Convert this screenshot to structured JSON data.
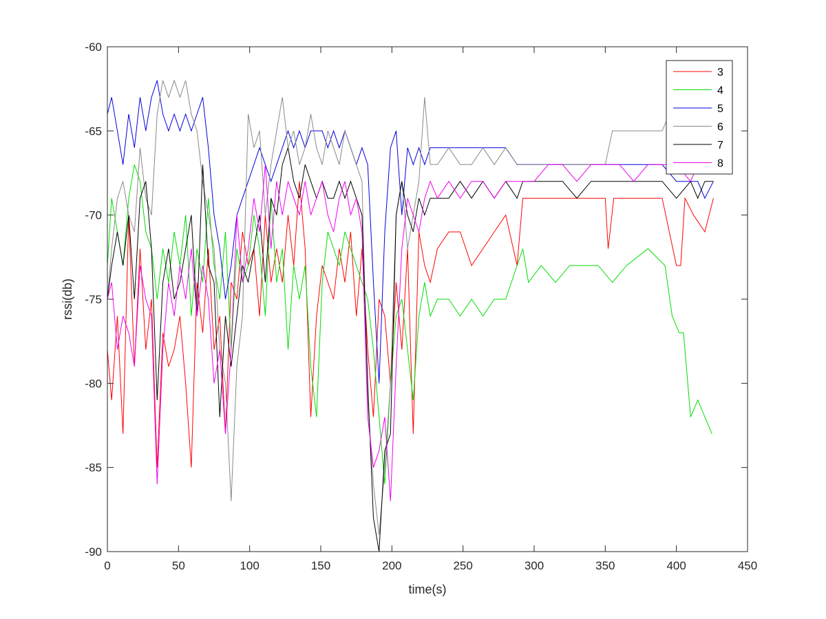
{
  "chart_data": {
    "type": "line",
    "title": "",
    "xlabel": "time(s)",
    "ylabel": "rssi(db)",
    "xlim": [
      0,
      450
    ],
    "ylim": [
      -90,
      -60
    ],
    "xticks": [
      0,
      50,
      100,
      150,
      200,
      250,
      300,
      350,
      400,
      450
    ],
    "yticks": [
      -90,
      -85,
      -80,
      -75,
      -70,
      -65,
      -60
    ],
    "grid": false,
    "legend_position": "top-right",
    "series": [
      {
        "name": "3",
        "color": "#ff0000",
        "x": [
          0,
          3,
          7,
          11,
          15,
          19,
          23,
          27,
          31,
          35,
          39,
          43,
          47,
          51,
          55,
          59,
          63,
          67,
          71,
          75,
          79,
          83,
          87,
          91,
          95,
          99,
          103,
          107,
          111,
          115,
          119,
          123,
          127,
          131,
          135,
          139,
          143,
          147,
          151,
          155,
          159,
          163,
          167,
          171,
          175,
          179,
          183,
          187,
          191,
          195,
          199,
          203,
          207,
          211,
          215,
          219,
          223,
          227,
          232,
          240,
          248,
          256,
          264,
          272,
          280,
          288,
          292,
          300,
          310,
          320,
          330,
          340,
          350,
          352,
          356,
          370,
          390,
          400,
          403,
          406,
          412,
          420,
          426
        ],
        "y": [
          -78,
          -81,
          -76,
          -83,
          -70,
          -79,
          -72,
          -78,
          -75,
          -85,
          -77,
          -79,
          -78,
          -76,
          -80,
          -85,
          -74,
          -77,
          -72,
          -78,
          -76,
          -83,
          -74,
          -75,
          -71,
          -73,
          -72,
          -76,
          -70,
          -74,
          -72,
          -74,
          -70,
          -73,
          -68,
          -72,
          -82,
          -76,
          -73,
          -74,
          -75,
          -72,
          -74,
          -71,
          -76,
          -72,
          -78,
          -82,
          -75,
          -76,
          -80,
          -74,
          -78,
          -72,
          -83,
          -71,
          -73,
          -74,
          -72,
          -71,
          -71,
          -73,
          -72,
          -71,
          -70,
          -73,
          -69,
          -69,
          -69,
          -69,
          -69,
          -69,
          -69,
          -72,
          -69,
          -69,
          -69,
          -73,
          -73,
          -69,
          -70,
          -71,
          -69
        ]
      },
      {
        "name": "4",
        "color": "#00dd00",
        "x": [
          0,
          3,
          7,
          11,
          15,
          19,
          23,
          27,
          31,
          35,
          39,
          43,
          47,
          51,
          55,
          59,
          63,
          67,
          71,
          75,
          79,
          83,
          87,
          91,
          95,
          99,
          103,
          107,
          111,
          115,
          119,
          123,
          127,
          131,
          135,
          139,
          143,
          147,
          151,
          155,
          159,
          163,
          167,
          171,
          175,
          179,
          183,
          187,
          191,
          195,
          199,
          203,
          207,
          211,
          215,
          219,
          223,
          227,
          232,
          240,
          248,
          256,
          264,
          272,
          280,
          288,
          292,
          296,
          305,
          315,
          325,
          335,
          345,
          355,
          365,
          380,
          392,
          397,
          402,
          405,
          410,
          415,
          420,
          425
        ],
        "y": [
          -73,
          -69,
          -71,
          -73,
          -69,
          -67,
          -68,
          -71,
          -72,
          -75,
          -72,
          -74,
          -71,
          -73,
          -70,
          -76,
          -72,
          -74,
          -69,
          -73,
          -75,
          -71,
          -78,
          -72,
          -74,
          -73,
          -70,
          -72,
          -76,
          -69,
          -74,
          -72,
          -78,
          -73,
          -75,
          -73,
          -79,
          -82,
          -74,
          -71,
          -72,
          -73,
          -71,
          -72,
          -73,
          -74,
          -75,
          -78,
          -82,
          -86,
          -80,
          -76,
          -75,
          -78,
          -81,
          -76,
          -74,
          -76,
          -75,
          -75,
          -76,
          -75,
          -76,
          -75,
          -75,
          -73,
          -72,
          -74,
          -73,
          -74,
          -73,
          -73,
          -73,
          -74,
          -73,
          -72,
          -73,
          -76,
          -77,
          -77,
          -82,
          -81,
          -82,
          -83
        ]
      },
      {
        "name": "5",
        "color": "#0000dd",
        "x": [
          0,
          3,
          7,
          11,
          15,
          19,
          23,
          27,
          31,
          35,
          39,
          43,
          47,
          51,
          55,
          59,
          63,
          67,
          71,
          75,
          79,
          83,
          87,
          91,
          95,
          99,
          103,
          107,
          111,
          115,
          119,
          123,
          127,
          131,
          135,
          139,
          143,
          147,
          151,
          155,
          159,
          163,
          167,
          171,
          175,
          179,
          183,
          187,
          191,
          195,
          199,
          203,
          207,
          211,
          215,
          219,
          223,
          227,
          232,
          240,
          248,
          256,
          264,
          272,
          280,
          288,
          292,
          300,
          310,
          320,
          330,
          340,
          350,
          360,
          370,
          380,
          390,
          400,
          410,
          415,
          420,
          426
        ],
        "y": [
          -64,
          -63,
          -65,
          -67,
          -64,
          -66,
          -63,
          -65,
          -63,
          -62,
          -64,
          -65,
          -64,
          -65,
          -64,
          -65,
          -64,
          -63,
          -66,
          -70,
          -72,
          -75,
          -73,
          -70,
          -69,
          -68,
          -67,
          -66,
          -67,
          -68,
          -67,
          -66,
          -65,
          -66,
          -65,
          -66,
          -65,
          -65,
          -65,
          -66,
          -65,
          -66,
          -65,
          -66,
          -67,
          -66,
          -67,
          -74,
          -80,
          -71,
          -66,
          -65,
          -70,
          -66,
          -67,
          -66,
          -67,
          -66,
          -66,
          -66,
          -66,
          -66,
          -66,
          -66,
          -66,
          -67,
          -67,
          -67,
          -67,
          -67,
          -67,
          -67,
          -67,
          -67,
          -67,
          -67,
          -67,
          -68,
          -68,
          -68,
          -69,
          -68
        ]
      },
      {
        "name": "6",
        "color": "#888888",
        "x": [
          0,
          3,
          7,
          11,
          15,
          19,
          23,
          27,
          31,
          35,
          39,
          43,
          47,
          51,
          55,
          59,
          63,
          67,
          71,
          75,
          79,
          83,
          87,
          91,
          95,
          99,
          103,
          107,
          111,
          115,
          119,
          123,
          127,
          131,
          135,
          139,
          143,
          147,
          151,
          155,
          159,
          163,
          167,
          171,
          175,
          179,
          183,
          187,
          191,
          195,
          199,
          203,
          207,
          211,
          215,
          219,
          223,
          227,
          232,
          240,
          248,
          256,
          264,
          272,
          280,
          288,
          292,
          300,
          310,
          320,
          330,
          340,
          350,
          355,
          365,
          375,
          385,
          390,
          395,
          400,
          410,
          420,
          426
        ],
        "y": [
          -75,
          -72,
          -69,
          -68,
          -70,
          -71,
          -66,
          -69,
          -70,
          -64,
          -62,
          -63,
          -62,
          -63,
          -62,
          -64,
          -65,
          -68,
          -70,
          -72,
          -78,
          -80,
          -87,
          -79,
          -76,
          -64,
          -66,
          -65,
          -70,
          -67,
          -65,
          -63,
          -66,
          -65,
          -67,
          -66,
          -64,
          -66,
          -67,
          -65,
          -66,
          -67,
          -65,
          -66,
          -67,
          -68,
          -81,
          -86,
          -89,
          -85,
          -80,
          -70,
          -68,
          -72,
          -70,
          -68,
          -63,
          -67,
          -67,
          -66,
          -67,
          -67,
          -66,
          -67,
          -66,
          -67,
          -67,
          -67,
          -67,
          -67,
          -67,
          -67,
          -67,
          -65,
          -65,
          -65,
          -65,
          -65,
          -64,
          -64,
          -64,
          -64,
          -64
        ]
      },
      {
        "name": "7",
        "color": "#000000",
        "x": [
          0,
          3,
          7,
          11,
          15,
          19,
          23,
          27,
          31,
          35,
          39,
          43,
          47,
          51,
          55,
          59,
          63,
          67,
          71,
          75,
          79,
          83,
          87,
          91,
          95,
          99,
          103,
          107,
          111,
          115,
          119,
          123,
          127,
          131,
          135,
          139,
          143,
          147,
          151,
          155,
          159,
          163,
          167,
          171,
          175,
          179,
          183,
          187,
          191,
          195,
          199,
          203,
          207,
          211,
          215,
          219,
          223,
          227,
          232,
          240,
          248,
          256,
          264,
          272,
          280,
          288,
          292,
          300,
          310,
          320,
          330,
          340,
          350,
          360,
          370,
          380,
          390,
          400,
          410,
          415,
          420,
          426
        ],
        "y": [
          -75,
          -73,
          -71,
          -73,
          -70,
          -75,
          -69,
          -68,
          -72,
          -81,
          -74,
          -72,
          -75,
          -74,
          -72,
          -70,
          -76,
          -67,
          -73,
          -74,
          -82,
          -76,
          -79,
          -76,
          -73,
          -74,
          -72,
          -70,
          -74,
          -69,
          -70,
          -67,
          -66,
          -68,
          -69,
          -67,
          -68,
          -69,
          -68,
          -69,
          -69,
          -68,
          -69,
          -68,
          -69,
          -70,
          -80,
          -88,
          -90,
          -84,
          -83,
          -70,
          -68,
          -70,
          -71,
          -69,
          -70,
          -69,
          -69,
          -69,
          -68,
          -69,
          -68,
          -69,
          -68,
          -69,
          -68,
          -68,
          -68,
          -68,
          -69,
          -68,
          -68,
          -68,
          -68,
          -68,
          -68,
          -69,
          -68,
          -69,
          -68,
          -68
        ]
      },
      {
        "name": "8",
        "color": "#ee00ee",
        "x": [
          0,
          3,
          7,
          11,
          15,
          19,
          23,
          27,
          31,
          35,
          39,
          43,
          47,
          51,
          55,
          59,
          63,
          67,
          71,
          75,
          79,
          83,
          87,
          91,
          95,
          99,
          103,
          107,
          111,
          115,
          119,
          123,
          127,
          131,
          135,
          139,
          143,
          147,
          151,
          155,
          159,
          163,
          167,
          171,
          175,
          179,
          183,
          187,
          191,
          195,
          199,
          203,
          207,
          211,
          215,
          219,
          223,
          227,
          232,
          240,
          248,
          256,
          264,
          272,
          280,
          288,
          292,
          300,
          310,
          320,
          330,
          340,
          350,
          360,
          370,
          380,
          390,
          400,
          410,
          415,
          420,
          426
        ],
        "y": [
          -75,
          -74,
          -78,
          -76,
          -77,
          -79,
          -73,
          -75,
          -76,
          -86,
          -78,
          -74,
          -76,
          -73,
          -75,
          -72,
          -76,
          -73,
          -75,
          -80,
          -78,
          -83,
          -78,
          -70,
          -74,
          -72,
          -69,
          -71,
          -67,
          -72,
          -68,
          -70,
          -68,
          -69,
          -70,
          -68,
          -70,
          -69,
          -68,
          -70,
          -71,
          -69,
          -68,
          -70,
          -69,
          -71,
          -82,
          -85,
          -84,
          -82,
          -87,
          -79,
          -72,
          -69,
          -70,
          -71,
          -69,
          -68,
          -69,
          -68,
          -69,
          -68,
          -68,
          -69,
          -68,
          -68,
          -68,
          -68,
          -67,
          -67,
          -68,
          -67,
          -67,
          -67,
          -68,
          -67,
          -67,
          -67,
          -68,
          -67,
          -67,
          -67
        ]
      }
    ]
  }
}
